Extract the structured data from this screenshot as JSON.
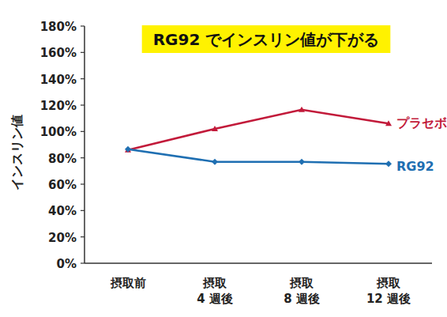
{
  "chart_data": {
    "type": "line",
    "title": "RG92 でインスリン値が下がる",
    "y_label": "インスリン値",
    "categories": [
      "摂取前",
      "摂取\n4 週後",
      "摂取\n8 週後",
      "摂取\n12 週後"
    ],
    "series": [
      {
        "name": "プラセボ",
        "color": "#c21a3a",
        "marker": "triangle",
        "values": [
          86,
          102,
          116.5,
          106
        ]
      },
      {
        "name": "RG92",
        "color": "#1f6fb2",
        "marker": "diamond",
        "values": [
          86.5,
          77,
          77,
          75.5
        ]
      }
    ],
    "ylim": [
      0,
      180
    ],
    "yticks": [
      {
        "value": 0,
        "label": "0%"
      },
      {
        "value": 20,
        "label": "20%"
      },
      {
        "value": 40,
        "label": "40%"
      },
      {
        "value": 60,
        "label": "60%"
      },
      {
        "value": 80,
        "label": "80%"
      },
      {
        "value": 100,
        "label": "100%"
      },
      {
        "value": 120,
        "label": "120%"
      },
      {
        "value": 140,
        "label": "140%"
      },
      {
        "value": 160,
        "label": "160%"
      },
      {
        "value": 180,
        "label": "180%"
      }
    ],
    "grid": false
  }
}
